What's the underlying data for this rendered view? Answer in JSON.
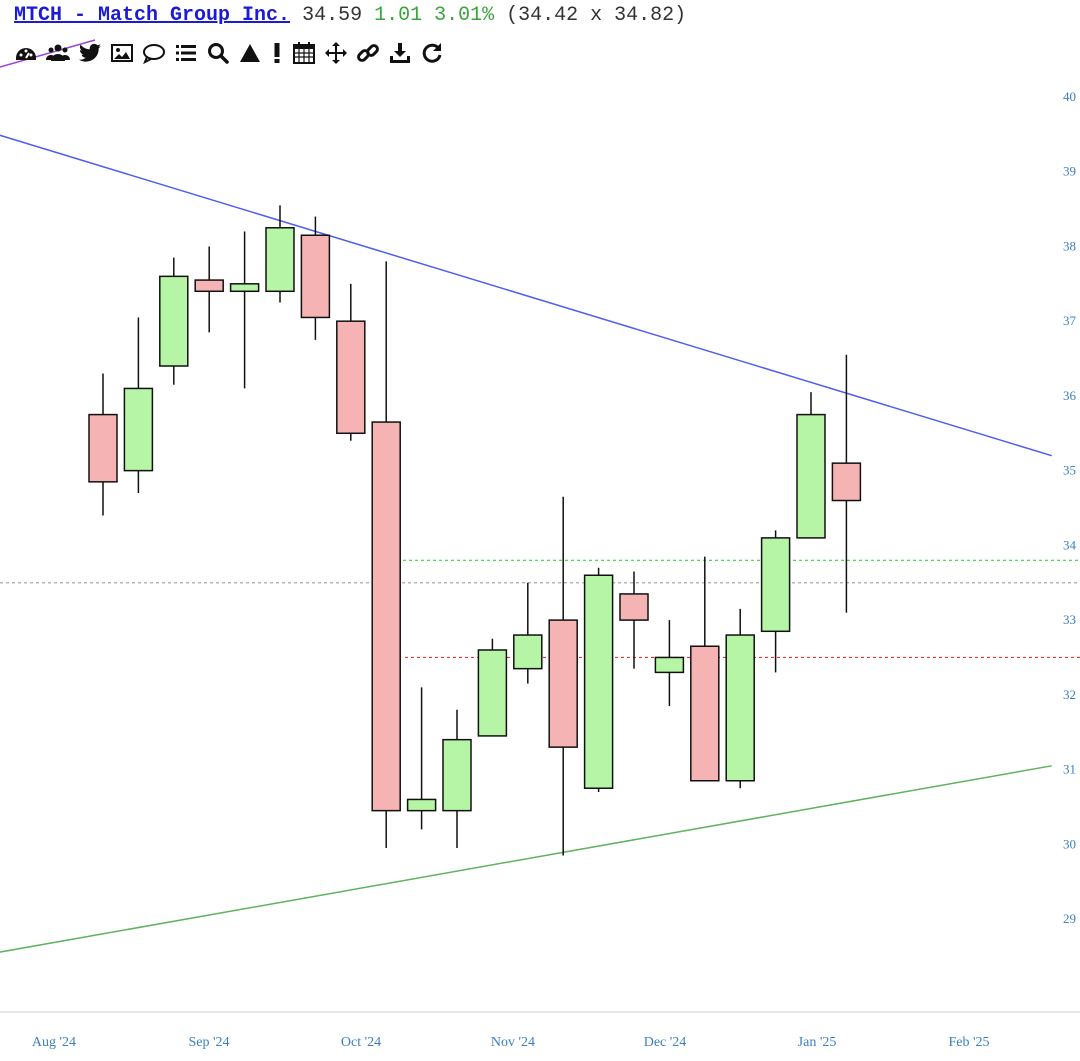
{
  "header": {
    "symbol_title": "MTCH - Match Group Inc.",
    "price": "34.59",
    "change": "1.01",
    "change_pct": "3.01%",
    "range": "(34.42 x 34.82)"
  },
  "toolbar": {
    "icons": [
      "dashboard-icon",
      "users-icon",
      "twitter-icon",
      "image-icon",
      "comment-icon",
      "list-icon",
      "search-icon",
      "triangle-icon",
      "exclamation-icon",
      "calendar-icon",
      "move-icon",
      "link-icon",
      "download-icon",
      "refresh-icon"
    ]
  },
  "colors": {
    "up_fill": "#b6f5a6",
    "down_fill": "#f6b3b3",
    "resistance_line": "#4d5ff0",
    "support_line": "#5fb35f",
    "green_dotted": "#3fcf3f",
    "red_dotted": "#ee3333",
    "gray_dotted": "#aaaaaa",
    "axis_text": "#3a7fc4"
  },
  "chart_data": {
    "type": "candlestick",
    "interval": "weekly",
    "x_labels": [
      "Aug '24",
      "Sep '24",
      "Oct '24",
      "Nov '24",
      "Dec '24",
      "Jan '25",
      "Feb '25"
    ],
    "y_ticks": [
      29,
      30,
      31,
      32,
      33,
      34,
      35,
      36,
      37,
      38,
      39,
      40
    ],
    "ylim": [
      28.2,
      40.2
    ],
    "candles": [
      {
        "o": 35.75,
        "h": 36.3,
        "l": 34.4,
        "c": 34.85
      },
      {
        "o": 35.0,
        "h": 37.05,
        "l": 34.7,
        "c": 36.1
      },
      {
        "o": 36.4,
        "h": 37.85,
        "l": 36.15,
        "c": 37.6
      },
      {
        "o": 37.55,
        "h": 38.0,
        "l": 36.85,
        "c": 37.4
      },
      {
        "o": 37.4,
        "h": 38.2,
        "l": 36.1,
        "c": 37.5
      },
      {
        "o": 37.4,
        "h": 38.55,
        "l": 37.25,
        "c": 38.25
      },
      {
        "o": 38.15,
        "h": 38.4,
        "l": 36.75,
        "c": 37.05
      },
      {
        "o": 37.0,
        "h": 37.5,
        "l": 35.4,
        "c": 35.5
      },
      {
        "o": 35.65,
        "h": 37.8,
        "l": 29.95,
        "c": 30.45
      },
      {
        "o": 30.45,
        "h": 32.1,
        "l": 30.2,
        "c": 30.6
      },
      {
        "o": 30.45,
        "h": 31.8,
        "l": 29.95,
        "c": 31.4
      },
      {
        "o": 31.45,
        "h": 32.75,
        "l": 31.45,
        "c": 32.6
      },
      {
        "o": 32.35,
        "h": 33.5,
        "l": 32.15,
        "c": 32.8
      },
      {
        "o": 33.0,
        "h": 34.65,
        "l": 29.85,
        "c": 31.3
      },
      {
        "o": 30.75,
        "h": 33.7,
        "l": 30.7,
        "c": 33.6
      },
      {
        "o": 33.35,
        "h": 33.65,
        "l": 32.35,
        "c": 33.0
      },
      {
        "o": 32.3,
        "h": 33.0,
        "l": 31.85,
        "c": 32.5
      },
      {
        "o": 32.65,
        "h": 33.85,
        "l": 30.85,
        "c": 30.85
      },
      {
        "o": 30.85,
        "h": 33.15,
        "l": 30.75,
        "c": 32.8
      },
      {
        "o": 32.85,
        "h": 34.2,
        "l": 32.3,
        "c": 34.1
      },
      {
        "o": 34.1,
        "h": 36.05,
        "l": 34.1,
        "c": 35.75
      },
      {
        "o": 35.1,
        "h": 36.55,
        "l": 33.1,
        "c": 34.6
      }
    ],
    "lines": {
      "resistance": {
        "from": {
          "i": -3,
          "y": 39.5
        },
        "to": {
          "i": 26.8,
          "y": 35.2
        }
      },
      "support": {
        "from": {
          "i": -3,
          "y": 28.55
        },
        "to": {
          "i": 26.8,
          "y": 31.05
        }
      },
      "green_dotted": 33.8,
      "red_dotted": 32.5,
      "gray_dotted": 33.5
    }
  }
}
